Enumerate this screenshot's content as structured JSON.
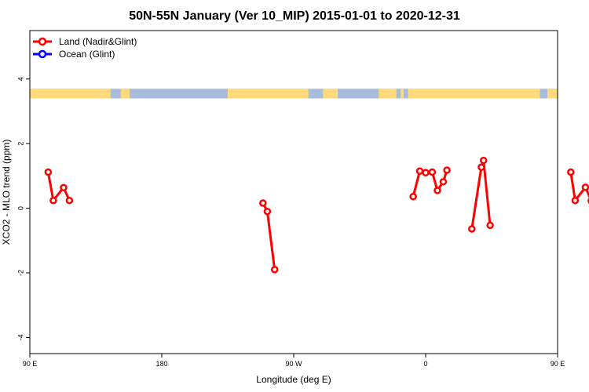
{
  "chart_data": {
    "type": "line",
    "title": "50N-55N January (Ver 10_MIP)   2015-01-01 to 2020-12-31",
    "xlabel": "Longitude (deg E)",
    "ylabel": "XCO2 - MLO trend (ppm)",
    "xlim": [
      90,
      450
    ],
    "ylim": [
      -4.5,
      5.5
    ],
    "x_ticks": [
      {
        "value": 90,
        "label": "90 E"
      },
      {
        "value": 180,
        "label": "180"
      },
      {
        "value": 270,
        "label": "90 W"
      },
      {
        "value": 360,
        "label": "0"
      },
      {
        "value": 450,
        "label": "90 E"
      },
      {
        "value": 540,
        "label": "180"
      }
    ],
    "y_ticks": [
      {
        "value": -4,
        "label": "-4"
      },
      {
        "value": -2,
        "label": "-2"
      },
      {
        "value": 0,
        "label": "0"
      },
      {
        "value": 2,
        "label": "2"
      },
      {
        "value": 4,
        "label": "4"
      }
    ],
    "legend": {
      "position": "top-left",
      "entries": [
        {
          "name": "Land (Nadir&Glint)",
          "color": "#ff0000"
        },
        {
          "name": "Ocean (Glint)",
          "color": "#0000ff"
        }
      ]
    },
    "land_ocean_band": {
      "y_range": [
        3.4,
        3.7
      ],
      "land_color": "#ffd97a",
      "ocean_color": "#a6bddb",
      "land_segments": [
        [
          90,
          145
        ],
        [
          152,
          158
        ],
        [
          225,
          280
        ],
        [
          290,
          300
        ],
        [
          328,
          340
        ],
        [
          343,
          345
        ],
        [
          348,
          438
        ],
        [
          443,
          450
        ],
        [
          468,
          530
        ],
        [
          535,
          540
        ]
      ]
    },
    "series": [
      {
        "name": "Land (Nadir&Glint)",
        "color": "#ff0000",
        "segments": [
          [
            [
              102.5,
              1.12
            ],
            [
              106,
              0.24
            ],
            [
              113,
              0.64
            ],
            [
              117,
              0.24
            ]
          ],
          [
            [
              249,
              0.16
            ],
            [
              252,
              -0.1
            ],
            [
              257,
              -1.9
            ]
          ],
          [
            [
              351.5,
              0.36
            ],
            [
              356,
              1.15
            ],
            [
              360,
              1.1
            ],
            [
              364.5,
              1.12
            ],
            [
              368,
              0.55
            ],
            [
              372,
              0.82
            ],
            [
              374.5,
              1.18
            ]
          ],
          [
            [
              391.5,
              -0.64
            ],
            [
              398,
              1.27
            ],
            [
              399.5,
              1.48
            ],
            [
              404,
              -0.53
            ]
          ],
          [
            [
              459,
              1.12
            ],
            [
              462,
              0.24
            ],
            [
              469,
              0.65
            ],
            [
              473,
              0.23
            ]
          ]
        ]
      }
    ]
  }
}
